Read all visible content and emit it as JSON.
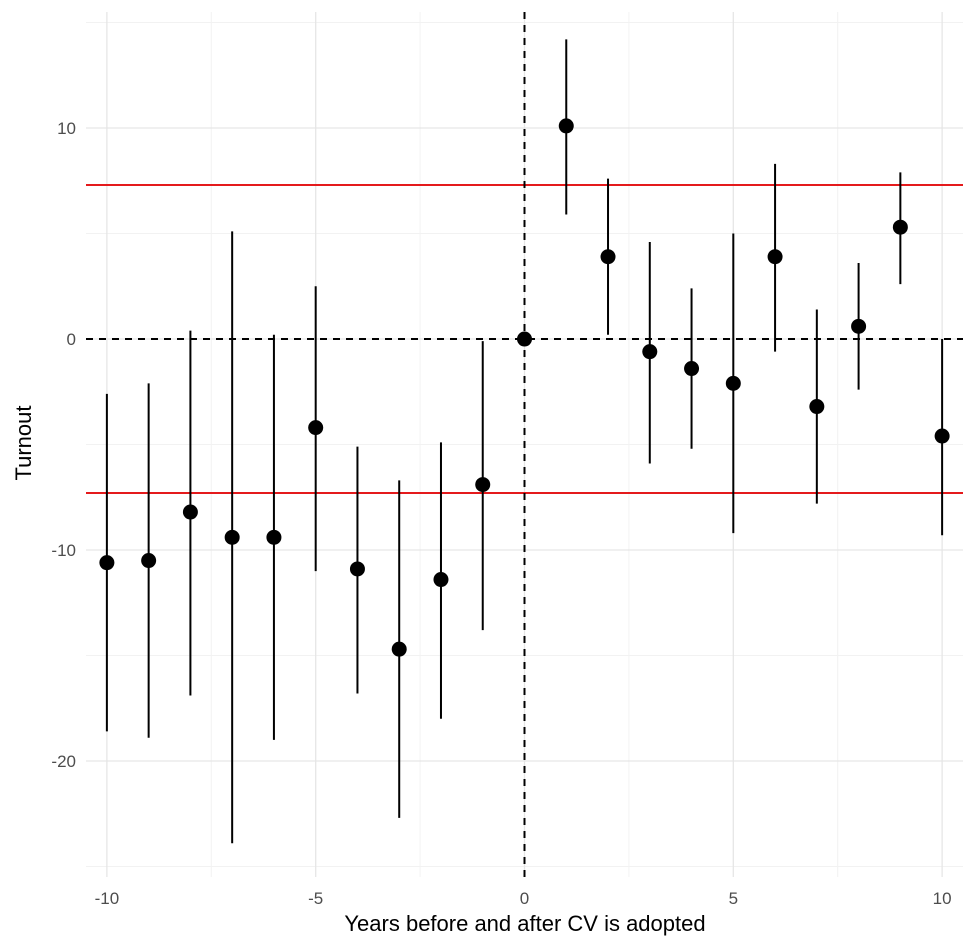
{
  "chart_data": {
    "type": "scatter",
    "title": "",
    "xlabel": "Years before and after CV is adopted",
    "ylabel": "Turnout",
    "xlim": [
      -10.5,
      10.5
    ],
    "ylim": [
      -25.5,
      15.5
    ],
    "x_ticks": [
      -10,
      -5,
      0,
      5,
      10
    ],
    "x_tick_labels": [
      "-10",
      "-5",
      "0",
      "5",
      "10"
    ],
    "y_ticks": [
      -20,
      -10,
      0,
      10
    ],
    "y_tick_labels": [
      "-20",
      "-10",
      "0",
      "10"
    ],
    "grid": true,
    "legend": "none",
    "reference_lines": {
      "vertical_dashed_x": 0,
      "horizontal_dashed_y": 0,
      "red_lines_y": [
        7.3,
        -7.3
      ],
      "red_color": "#e41a1c"
    },
    "point_color": "#000000",
    "points": [
      {
        "x": -10,
        "y": -10.6,
        "lower": -18.6,
        "upper": -2.6
      },
      {
        "x": -9,
        "y": -10.5,
        "lower": -18.9,
        "upper": -2.1
      },
      {
        "x": -8,
        "y": -8.2,
        "lower": -16.9,
        "upper": 0.4
      },
      {
        "x": -7,
        "y": -9.4,
        "lower": -23.9,
        "upper": 5.1
      },
      {
        "x": -6,
        "y": -9.4,
        "lower": -19.0,
        "upper": 0.2
      },
      {
        "x": -5,
        "y": -4.2,
        "lower": -11.0,
        "upper": 2.5
      },
      {
        "x": -4,
        "y": -10.9,
        "lower": -16.8,
        "upper": -5.1
      },
      {
        "x": -3,
        "y": -14.7,
        "lower": -22.7,
        "upper": -6.7
      },
      {
        "x": -2,
        "y": -11.4,
        "lower": -18.0,
        "upper": -4.9
      },
      {
        "x": -1,
        "y": -6.9,
        "lower": -13.8,
        "upper": -0.1
      },
      {
        "x": 0,
        "y": 0.0,
        "lower": 0.0,
        "upper": 0.0
      },
      {
        "x": 1,
        "y": 10.1,
        "lower": 5.9,
        "upper": 14.2
      },
      {
        "x": 2,
        "y": 3.9,
        "lower": 0.2,
        "upper": 7.6
      },
      {
        "x": 3,
        "y": -0.6,
        "lower": -5.9,
        "upper": 4.6
      },
      {
        "x": 4,
        "y": -1.4,
        "lower": -5.2,
        "upper": 2.4
      },
      {
        "x": 5,
        "y": -2.1,
        "lower": -9.2,
        "upper": 5.0
      },
      {
        "x": 6,
        "y": 3.9,
        "lower": -0.6,
        "upper": 8.3
      },
      {
        "x": 7,
        "y": -3.2,
        "lower": -7.8,
        "upper": 1.4
      },
      {
        "x": 8,
        "y": 0.6,
        "lower": -2.4,
        "upper": 3.6
      },
      {
        "x": 9,
        "y": 5.3,
        "lower": 2.6,
        "upper": 7.9
      },
      {
        "x": 10,
        "y": -4.6,
        "lower": -9.3,
        "upper": 0.0
      }
    ]
  }
}
